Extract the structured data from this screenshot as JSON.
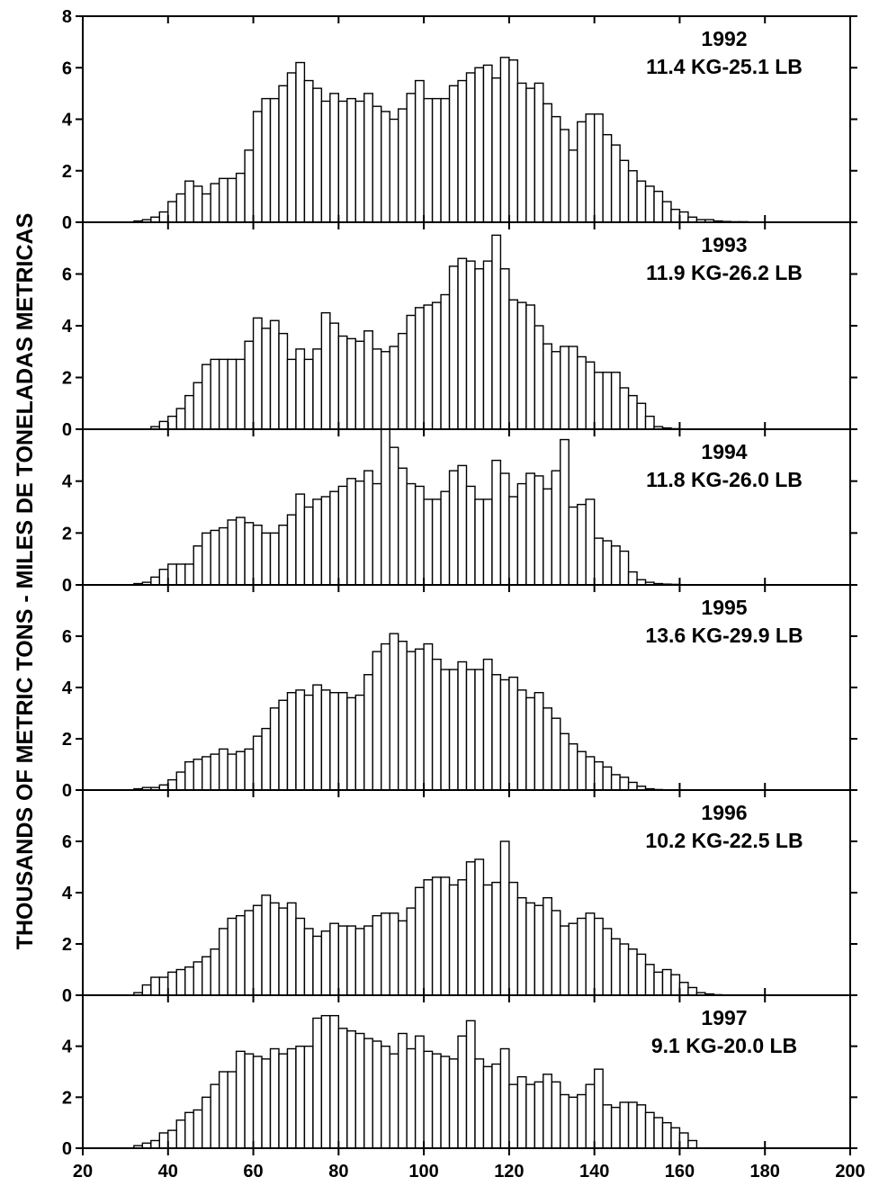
{
  "chart_data": {
    "type": "bar",
    "title": "",
    "ylabel": "THOUSANDS OF METRIC TONS - MILES DE TONELADAS METRICAS",
    "xlabel": "",
    "xlim": [
      20,
      200
    ],
    "x_ticks": [
      20,
      40,
      60,
      80,
      100,
      120,
      140,
      160,
      180,
      200
    ],
    "bin_width": 2,
    "x": [
      33,
      35,
      37,
      39,
      41,
      43,
      45,
      47,
      49,
      51,
      53,
      55,
      57,
      59,
      61,
      63,
      65,
      67,
      69,
      71,
      73,
      75,
      77,
      79,
      81,
      83,
      85,
      87,
      89,
      91,
      93,
      95,
      97,
      99,
      101,
      103,
      105,
      107,
      109,
      111,
      113,
      115,
      117,
      119,
      121,
      123,
      125,
      127,
      129,
      131,
      133,
      135,
      137,
      139,
      141,
      143,
      145,
      147,
      149,
      151,
      153,
      155,
      157,
      159,
      161,
      163,
      165,
      167,
      169,
      171,
      173,
      175,
      177,
      179,
      181
    ],
    "grid": false,
    "panels": [
      {
        "year": "1992",
        "label": "11.4 KG-25.1 LB",
        "ylim": [
          0,
          8
        ],
        "y_ticks": [
          0,
          2,
          4,
          6,
          8
        ],
        "values": [
          0.05,
          0.1,
          0.2,
          0.4,
          0.8,
          1.1,
          1.6,
          1.4,
          1.1,
          1.5,
          1.7,
          1.7,
          1.9,
          2.8,
          4.3,
          4.8,
          4.8,
          5.3,
          5.8,
          6.2,
          5.5,
          5.2,
          4.7,
          5.0,
          4.7,
          4.8,
          4.7,
          5.0,
          4.5,
          4.3,
          4.0,
          4.4,
          5.0,
          5.5,
          4.8,
          4.8,
          4.8,
          5.3,
          5.5,
          5.8,
          6.0,
          6.1,
          5.6,
          6.4,
          6.3,
          5.4,
          5.2,
          5.4,
          4.6,
          4.1,
          3.6,
          2.8,
          3.9,
          4.2,
          4.2,
          3.4,
          3.0,
          2.4,
          2.0,
          1.6,
          1.4,
          1.2,
          0.8,
          0.5,
          0.4,
          0.2,
          0.1,
          0.1,
          0.05,
          0.03,
          0.02,
          0.02,
          0.01,
          0.01,
          0.0
        ]
      },
      {
        "year": "1993",
        "label": "11.9 KG-26.2 LB",
        "ylim": [
          0,
          8
        ],
        "y_ticks": [
          0,
          2,
          4,
          6
        ],
        "values": [
          0.0,
          0.0,
          0.1,
          0.3,
          0.5,
          0.8,
          1.3,
          1.8,
          2.5,
          2.7,
          2.7,
          2.7,
          2.7,
          3.4,
          4.3,
          3.9,
          4.2,
          3.7,
          2.7,
          3.1,
          2.7,
          3.1,
          4.5,
          4.1,
          3.6,
          3.5,
          3.4,
          3.8,
          3.1,
          3.0,
          3.2,
          3.7,
          4.4,
          4.7,
          4.8,
          4.9,
          5.2,
          6.3,
          6.6,
          6.5,
          6.2,
          6.5,
          7.5,
          6.2,
          5.0,
          4.9,
          4.8,
          4.0,
          3.3,
          3.0,
          3.2,
          3.2,
          2.8,
          2.6,
          2.2,
          2.2,
          2.2,
          1.6,
          1.3,
          1.0,
          0.5,
          0.1,
          0.05,
          0.02,
          0.0,
          0.0,
          0.0,
          0.0,
          0.0,
          0.0,
          0.0,
          0.0,
          0.0,
          0.0,
          0.0
        ]
      },
      {
        "year": "1994",
        "label": "11.8 KG-26.0 LB",
        "ylim": [
          0,
          6
        ],
        "y_ticks": [
          0,
          2,
          4
        ],
        "values": [
          0.05,
          0.1,
          0.3,
          0.6,
          0.8,
          0.8,
          0.8,
          1.5,
          2.0,
          2.1,
          2.2,
          2.5,
          2.6,
          2.4,
          2.3,
          2.0,
          2.0,
          2.3,
          2.7,
          3.5,
          3.0,
          3.3,
          3.4,
          3.6,
          3.8,
          4.1,
          4.0,
          4.4,
          3.9,
          6.0,
          5.3,
          4.5,
          3.9,
          3.8,
          3.3,
          3.3,
          3.6,
          4.4,
          4.6,
          3.8,
          3.3,
          3.3,
          4.8,
          4.3,
          3.4,
          3.9,
          4.3,
          4.2,
          3.7,
          4.4,
          5.6,
          3.0,
          3.1,
          3.3,
          1.8,
          1.7,
          1.5,
          1.3,
          0.5,
          0.2,
          0.1,
          0.05,
          0.03,
          0.02,
          0.01,
          0.0,
          0.0,
          0.0,
          0.0,
          0.0,
          0.0,
          0.0,
          0.0,
          0.0,
          0.0
        ]
      },
      {
        "year": "1995",
        "label": "13.6 KG-29.9 LB",
        "ylim": [
          0,
          8
        ],
        "y_ticks": [
          0,
          2,
          4,
          6
        ],
        "values": [
          0.05,
          0.1,
          0.1,
          0.2,
          0.4,
          0.7,
          1.1,
          1.2,
          1.3,
          1.4,
          1.6,
          1.4,
          1.5,
          1.6,
          2.1,
          2.4,
          3.2,
          3.5,
          3.8,
          3.9,
          3.7,
          4.1,
          3.9,
          3.8,
          3.8,
          3.6,
          3.7,
          4.5,
          5.4,
          5.7,
          6.1,
          5.8,
          5.4,
          5.5,
          5.7,
          5.1,
          4.7,
          4.7,
          5.0,
          4.7,
          4.7,
          5.1,
          4.5,
          4.3,
          4.4,
          3.9,
          3.6,
          3.8,
          3.2,
          2.8,
          2.2,
          1.8,
          1.5,
          1.3,
          1.1,
          0.9,
          0.6,
          0.5,
          0.3,
          0.15,
          0.05,
          0.02,
          0.0,
          0.0,
          0.0,
          0.0,
          0.0,
          0.0,
          0.0,
          0.0,
          0.0,
          0.0,
          0.0,
          0.0,
          0.0
        ]
      },
      {
        "year": "1996",
        "label": "10.2 KG-22.5 LB",
        "ylim": [
          0,
          8
        ],
        "y_ticks": [
          0,
          2,
          4,
          6
        ],
        "values": [
          0.1,
          0.4,
          0.7,
          0.7,
          0.9,
          1.0,
          1.1,
          1.3,
          1.5,
          1.8,
          2.6,
          3.0,
          3.1,
          3.3,
          3.5,
          3.9,
          3.6,
          3.4,
          3.6,
          3.0,
          2.6,
          2.3,
          2.5,
          2.8,
          2.7,
          2.7,
          2.6,
          2.7,
          3.1,
          3.2,
          3.2,
          2.9,
          3.4,
          4.2,
          4.5,
          4.6,
          4.6,
          4.3,
          4.5,
          5.2,
          5.3,
          4.3,
          4.4,
          6.0,
          4.4,
          3.8,
          3.6,
          3.5,
          3.8,
          3.3,
          2.7,
          2.8,
          3.0,
          3.2,
          3.0,
          2.6,
          2.2,
          2.0,
          1.8,
          1.6,
          1.2,
          0.9,
          1.0,
          0.8,
          0.5,
          0.3,
          0.1,
          0.05,
          0.02,
          0.01,
          0.0,
          0.0,
          0.0,
          0.0,
          0.0
        ]
      },
      {
        "year": "1997",
        "label": "9.1 KG-20.0 LB",
        "ylim": [
          0,
          6
        ],
        "y_ticks": [
          0,
          2,
          4
        ],
        "values": [
          0.1,
          0.2,
          0.3,
          0.6,
          0.7,
          1.1,
          1.4,
          1.5,
          2.0,
          2.5,
          3.0,
          3.0,
          3.8,
          3.7,
          3.6,
          3.5,
          3.9,
          3.7,
          3.9,
          4.0,
          4.0,
          5.1,
          5.2,
          5.2,
          4.7,
          4.6,
          4.5,
          4.3,
          4.2,
          4.0,
          3.7,
          4.5,
          3.9,
          4.4,
          3.8,
          3.7,
          3.6,
          3.5,
          4.4,
          5.0,
          3.5,
          3.2,
          3.3,
          3.9,
          2.5,
          2.8,
          2.5,
          2.6,
          2.9,
          2.6,
          2.1,
          2.0,
          2.1,
          2.5,
          3.1,
          1.7,
          1.6,
          1.8,
          1.8,
          1.7,
          1.4,
          1.2,
          1.0,
          0.8,
          0.6,
          0.3,
          0.0,
          0.0,
          0.0,
          0.0,
          0.0,
          0.0,
          0.0,
          0.0,
          0.0
        ]
      }
    ]
  }
}
